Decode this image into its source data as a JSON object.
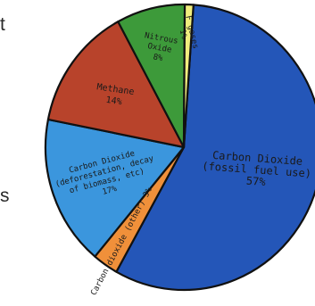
{
  "edge_fragments": {
    "top_left": "t",
    "middle_left": "s"
  },
  "chart_data": {
    "type": "pie",
    "slices": [
      {
        "label_lines": [
          "Carbon Dioxide",
          "(fossil fuel use)",
          "57%"
        ],
        "value": 57,
        "color": "#2456b8"
      },
      {
        "label_lines": [
          "Carbon dioxide (other) 3%"
        ],
        "value": 3,
        "color": "#f0903a"
      },
      {
        "label_lines": [
          "Carbon Dioxide",
          "(deforestation, decay",
          "of biomass, etc)",
          "17%"
        ],
        "value": 17,
        "color": "#3b96dd"
      },
      {
        "label_lines": [
          "Methane",
          "14%"
        ],
        "value": 14,
        "color": "#b8432b"
      },
      {
        "label_lines": [
          "Nitrous",
          "Oxide",
          "8%"
        ],
        "value": 8,
        "color": "#3d9a3a"
      },
      {
        "label_lines": [
          "F gases",
          "1%"
        ],
        "value": 1,
        "color": "#f1ee7e"
      }
    ]
  }
}
